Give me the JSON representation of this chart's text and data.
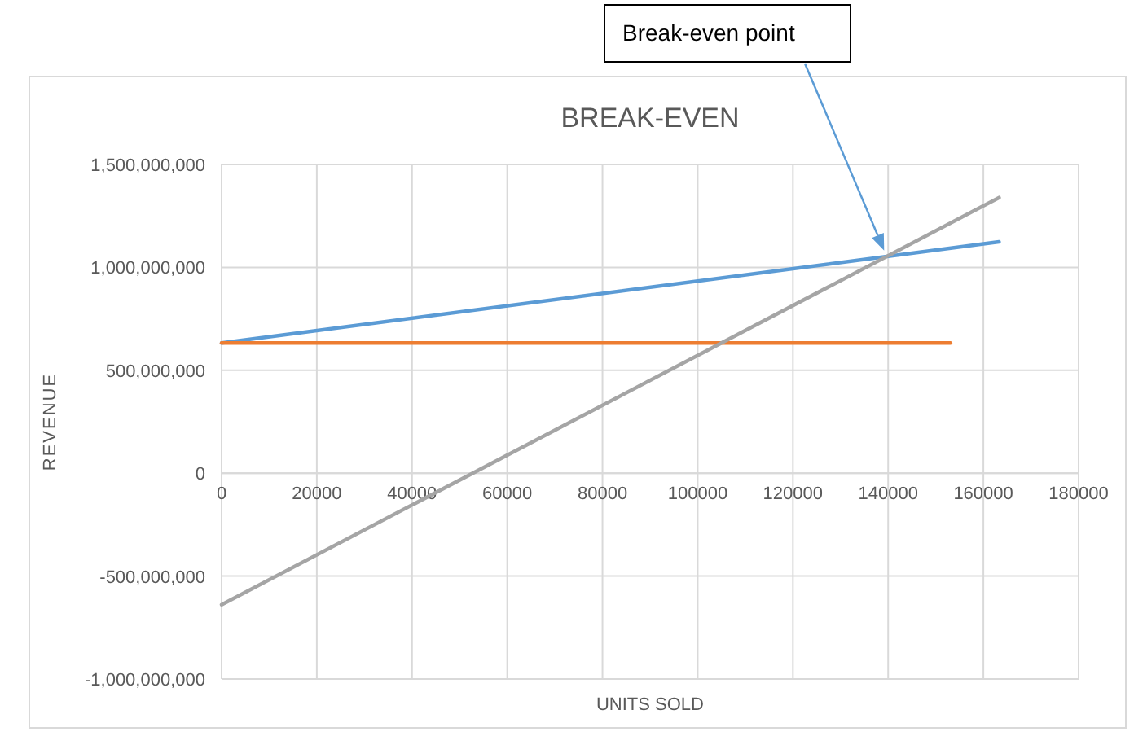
{
  "chart_data": {
    "type": "line",
    "title": "BREAK-EVEN",
    "xlabel": "UNITS SOLD",
    "ylabel": "REVENUE",
    "xlim": [
      0,
      180000
    ],
    "xticks": [
      0,
      20000,
      40000,
      60000,
      80000,
      100000,
      120000,
      140000,
      160000,
      180000
    ],
    "ylim": [
      -1000000000,
      1500000000
    ],
    "yticks": [
      {
        "value": -1000000000,
        "label": "-1,000,000,000"
      },
      {
        "value": -500000000,
        "label": "-500,000,000"
      },
      {
        "value": 0,
        "label": "0"
      },
      {
        "value": 500000000,
        "label": "500,000,000"
      },
      {
        "value": 1000000000,
        "label": "1,000,000,000"
      },
      {
        "value": 1500000000,
        "label": "1,500,000,000"
      }
    ],
    "grid": true,
    "marker": "none",
    "line_style": "solid",
    "series": [
      {
        "color": "#5b9bd5",
        "x": [
          0,
          163300
        ],
        "values": [
          633000000,
          1124000000
        ]
      },
      {
        "color": "#ed7d31",
        "x": [
          0,
          153100
        ],
        "values": [
          633000000,
          633000000
        ]
      },
      {
        "color": "#a5a5a5",
        "x": [
          0,
          163300
        ],
        "values": [
          -639000000,
          1339000000
        ]
      }
    ],
    "annotations": [
      "Break-even point"
    ]
  }
}
